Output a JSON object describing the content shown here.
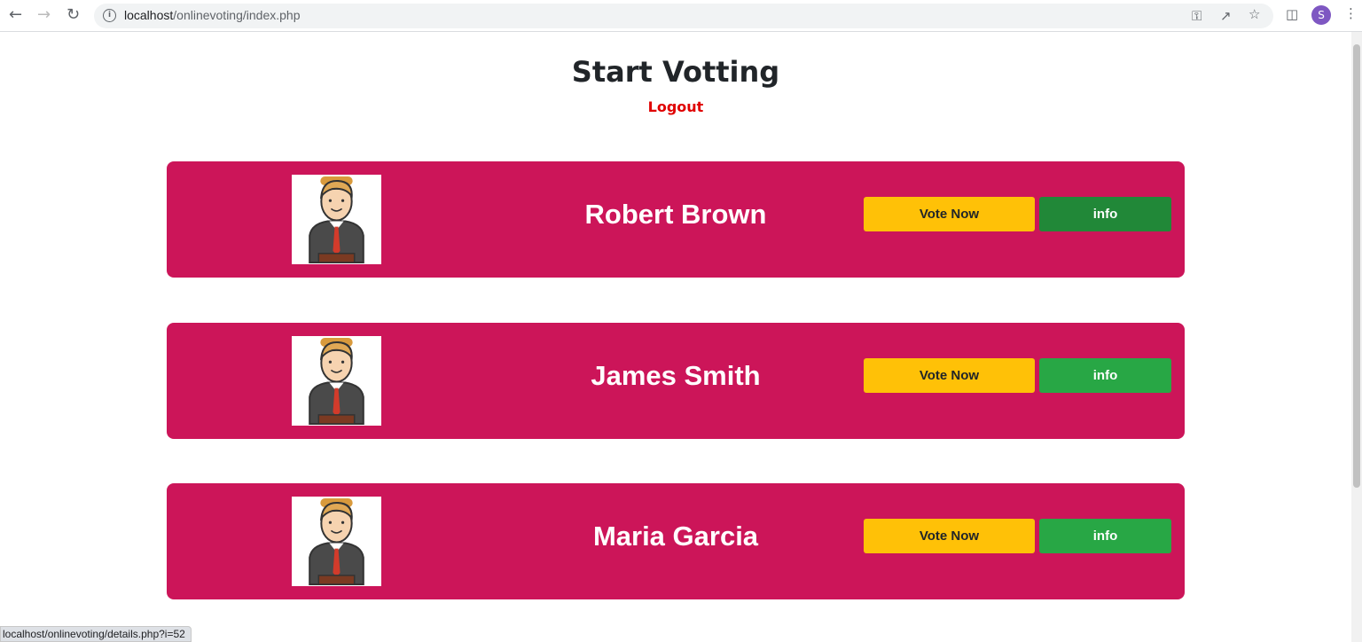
{
  "browser": {
    "url_host": "localhost",
    "url_path": "/onlinevoting/index.php",
    "profile_initial": "S"
  },
  "page": {
    "title": "Start Votting",
    "logout": "Logout"
  },
  "candidates": [
    {
      "name": "Robert Brown",
      "vote": "Vote Now",
      "info": "info"
    },
    {
      "name": "James Smith",
      "vote": "Vote Now",
      "info": "info"
    },
    {
      "name": "Maria Garcia",
      "vote": "Vote Now",
      "info": "info"
    }
  ],
  "status_bar": "localhost/onlinevoting/details.php?i=52",
  "colors": {
    "card": "#cc1559",
    "vote": "#ffc107",
    "info": "#28a745",
    "info_hover": "#218838",
    "logout": "#e00000"
  }
}
